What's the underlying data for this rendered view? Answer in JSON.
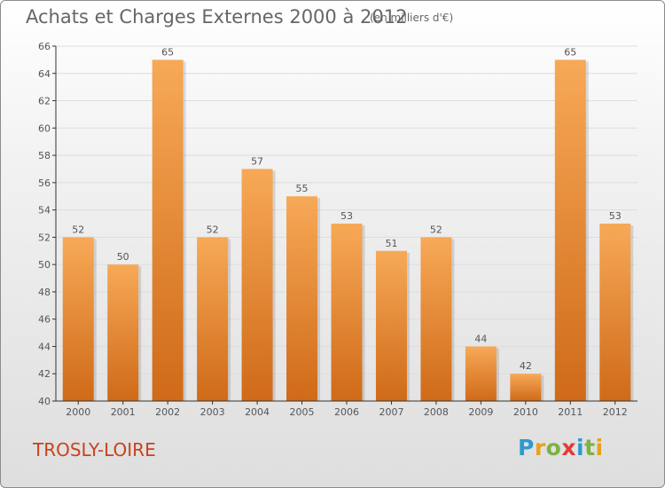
{
  "title": "Achats et Charges Externes 2000 à 2012",
  "unit": "(en milliers d'€)",
  "place": "TROSLY-LOIRE",
  "logo": {
    "text": "Proxiti",
    "letters": [
      {
        "ch": "P",
        "color": "#2e9ad0"
      },
      {
        "ch": "r",
        "color": "#e8a21a"
      },
      {
        "ch": "o",
        "color": "#7cb342"
      },
      {
        "ch": "x",
        "color": "#e53935"
      },
      {
        "ch": "i",
        "color": "#2e9ad0"
      },
      {
        "ch": "t",
        "color": "#7cb342"
      },
      {
        "ch": "i",
        "color": "#e8a21a"
      }
    ]
  },
  "colors": {
    "bar_light": "#f7a957",
    "bar_dark": "#cf6a18",
    "axis": "#333333",
    "grid": "#dddddd",
    "text": "#555555",
    "place": "#c8421c"
  },
  "chart_data": {
    "type": "bar",
    "title": "Achats et Charges Externes 2000 à 2012",
    "categories": [
      "2000",
      "2001",
      "2002",
      "2003",
      "2004",
      "2005",
      "2006",
      "2007",
      "2008",
      "2009",
      "2010",
      "2011",
      "2012"
    ],
    "values": [
      52,
      50,
      65,
      52,
      57,
      55,
      53,
      51,
      52,
      44,
      42,
      65,
      53
    ],
    "ylim": [
      40,
      66
    ],
    "yticks": [
      40,
      42,
      44,
      46,
      48,
      50,
      52,
      54,
      56,
      58,
      60,
      62,
      64,
      66
    ],
    "grid": true,
    "data_labels": true
  }
}
